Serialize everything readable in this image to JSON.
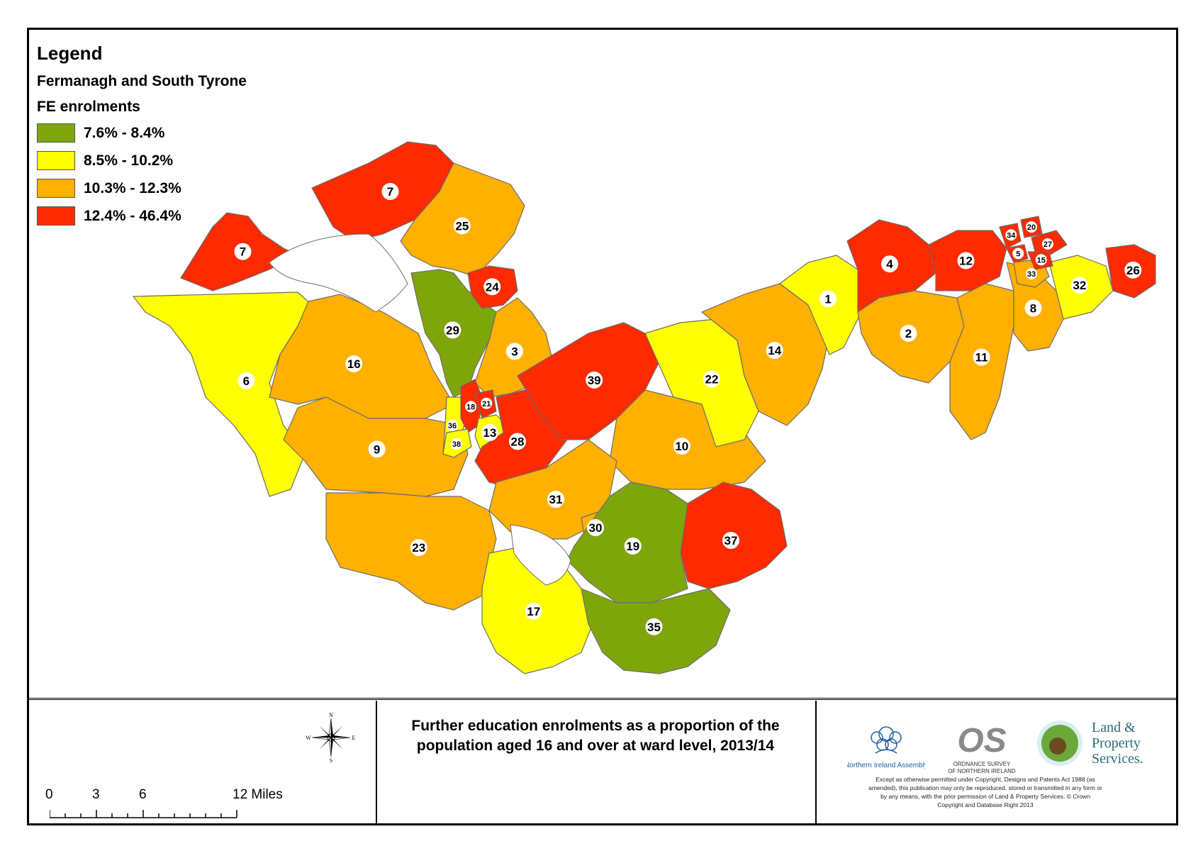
{
  "legend": {
    "heading": "Legend",
    "area": "Fermanagh and South Tyrone",
    "measure": "FE enrolments",
    "classes": [
      {
        "label": "7.6% - 8.4%",
        "color": "#7ea60a"
      },
      {
        "label": "8.5% - 10.2%",
        "color": "#ffff00"
      },
      {
        "label": "10.3% - 12.3%",
        "color": "#ffb000"
      },
      {
        "label": "12.4% - 46.4%",
        "color": "#ff2a00"
      }
    ]
  },
  "title": {
    "line1": "Further education enrolments as a proportion of the",
    "line2": "population aged 16 and over at ward level, 2013/14"
  },
  "scale_bar": {
    "ticks": [
      "0",
      "3",
      "6",
      "12 Miles"
    ]
  },
  "compass": {
    "n": "N",
    "s": "S",
    "e": "E",
    "w": "W"
  },
  "logos": {
    "nia": "Northern Ireland Assembly",
    "os_line1": "ORDNANCE SURVEY",
    "os_line2": "OF NORTHERN IRELAND",
    "lps_line1": "Land &",
    "lps_line2": "Property",
    "lps_line3": "Services."
  },
  "copyright": "Except as otherwise permitted under Copyright, Designs and Patents Act 1988 (as amended), this publication may only be reproduced, stored or transmitted in any form or by any means, with the prior permission of Land & Property Services. © Crown Copyright and Database Right 2013",
  "wards": [
    {
      "id": "1",
      "class": 1
    },
    {
      "id": "2",
      "class": 2
    },
    {
      "id": "3",
      "class": 2
    },
    {
      "id": "4",
      "class": 3
    },
    {
      "id": "5",
      "class": 3
    },
    {
      "id": "6",
      "class": 1
    },
    {
      "id": "7",
      "class": 3
    },
    {
      "id": "8",
      "class": 2
    },
    {
      "id": "9",
      "class": 2
    },
    {
      "id": "10",
      "class": 2
    },
    {
      "id": "11",
      "class": 2
    },
    {
      "id": "12",
      "class": 3
    },
    {
      "id": "13",
      "class": 1
    },
    {
      "id": "14",
      "class": 2
    },
    {
      "id": "15",
      "class": 3
    },
    {
      "id": "16",
      "class": 2
    },
    {
      "id": "17",
      "class": 1
    },
    {
      "id": "18",
      "class": 3
    },
    {
      "id": "19",
      "class": 0
    },
    {
      "id": "20",
      "class": 3
    },
    {
      "id": "21",
      "class": 3
    },
    {
      "id": "22",
      "class": 1
    },
    {
      "id": "23",
      "class": 2
    },
    {
      "id": "24",
      "class": 3
    },
    {
      "id": "25",
      "class": 2
    },
    {
      "id": "26",
      "class": 3
    },
    {
      "id": "27",
      "class": 3
    },
    {
      "id": "28",
      "class": 3
    },
    {
      "id": "29",
      "class": 0
    },
    {
      "id": "30",
      "class": 2
    },
    {
      "id": "31",
      "class": 2
    },
    {
      "id": "32",
      "class": 1
    },
    {
      "id": "33",
      "class": 2
    },
    {
      "id": "34",
      "class": 3
    },
    {
      "id": "35",
      "class": 0
    },
    {
      "id": "36",
      "class": 1
    },
    {
      "id": "37",
      "class": 3
    },
    {
      "id": "38",
      "class": 1
    },
    {
      "id": "39",
      "class": 3
    }
  ]
}
